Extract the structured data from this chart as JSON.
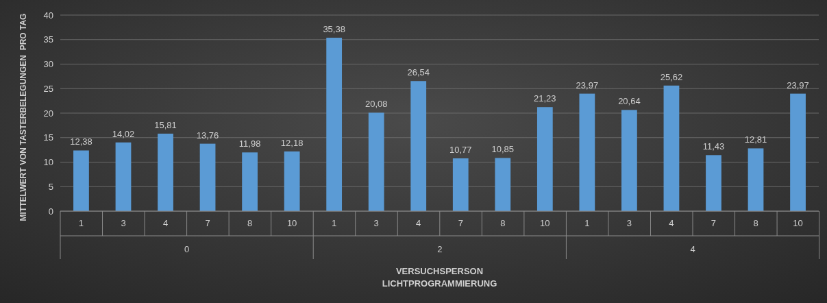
{
  "chart_data": {
    "type": "bar",
    "xlabel": "VERSUCHSPERSON\nLICHTPROGRAMMIERUNG",
    "ylabel": "MITTELWERT VON TASTERBELEGUNGEN  PRO TAG",
    "categories": [
      "1",
      "3",
      "4",
      "7",
      "8",
      "10",
      "1",
      "3",
      "4",
      "7",
      "8",
      "10",
      "1",
      "3",
      "4",
      "7",
      "8",
      "10"
    ],
    "annotations": [
      "0",
      "2",
      "4"
    ],
    "values": [
      12.38,
      14.02,
      15.81,
      13.76,
      11.98,
      12.18,
      35.38,
      20.08,
      26.54,
      10.77,
      10.85,
      21.23,
      23.97,
      20.64,
      25.62,
      11.43,
      12.81,
      23.97
    ],
    "value_labels": [
      "12,38",
      "14,02",
      "15,81",
      "13,76",
      "11,98",
      "12,18",
      "35,38",
      "20,08",
      "26,54",
      "10,77",
      "10,85",
      "21,23",
      "23,97",
      "20,64",
      "25,62",
      "11,43",
      "12,81",
      "23,97"
    ],
    "color": "#5b9bd5",
    "ylim": [
      0,
      40
    ],
    "yticks": [
      0,
      5,
      10,
      15,
      20,
      25,
      30,
      35,
      40
    ],
    "grid": "y"
  }
}
